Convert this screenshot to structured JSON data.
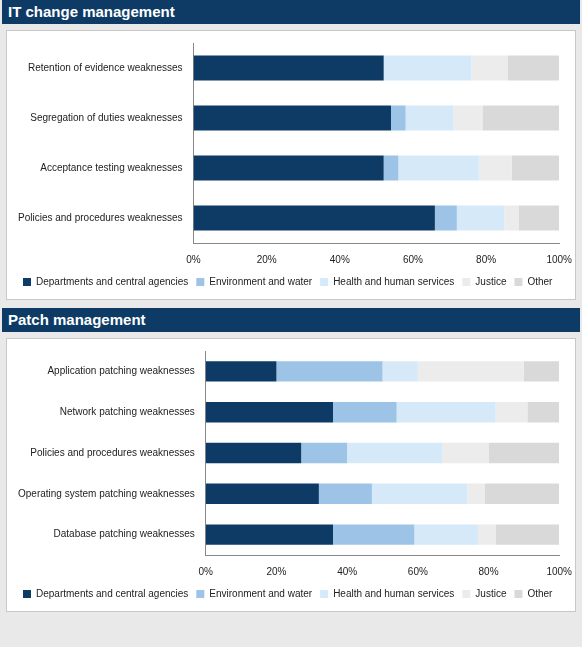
{
  "chart_data": [
    {
      "type": "bar",
      "title": "IT change management",
      "orientation": "horizontal",
      "stacked": true,
      "grid": false,
      "legend": "bottom",
      "categories": [
        "Retention of evidence weaknesses",
        "Segregation of duties weaknesses",
        "Acceptance testing weaknesses",
        "Policies and procedures weaknesses"
      ],
      "series": [
        {
          "name": "Departments and central agencies",
          "color": "#0d3b66",
          "values": [
            52,
            54,
            52,
            66
          ]
        },
        {
          "name": "Environment and water",
          "color": "#9dc3e6",
          "values": [
            0,
            4,
            4,
            6
          ]
        },
        {
          "name": "Health and human services",
          "color": "#d5e9f8",
          "values": [
            24,
            13,
            22,
            13
          ]
        },
        {
          "name": "Justice",
          "color": "#ececec",
          "values": [
            10,
            8,
            9,
            4
          ]
        },
        {
          "name": "Other",
          "color": "#d9d9d9",
          "values": [
            14,
            21,
            13,
            11
          ]
        }
      ],
      "xlim": [
        0,
        100
      ],
      "xticks": [
        {
          "value": 0,
          "label": "0%"
        },
        {
          "value": 20,
          "label": "20%"
        },
        {
          "value": 40,
          "label": "40%"
        },
        {
          "value": 60,
          "label": "60%"
        },
        {
          "value": 80,
          "label": "80%"
        },
        {
          "value": 100,
          "label": "100%"
        }
      ]
    },
    {
      "type": "bar",
      "title": "Patch management",
      "orientation": "horizontal",
      "stacked": true,
      "grid": false,
      "legend": "bottom",
      "categories": [
        "Application patching weaknesses",
        "Network patching weaknesses",
        "Policies and procedures weaknesses",
        "Operating system patching weaknesses",
        "Database patching weaknesses"
      ],
      "series": [
        {
          "name": "Departments and central agencies",
          "color": "#0d3b66",
          "values": [
            20,
            36,
            27,
            32,
            36
          ]
        },
        {
          "name": "Environment and water",
          "color": "#9dc3e6",
          "values": [
            30,
            18,
            13,
            15,
            23
          ]
        },
        {
          "name": "Health and human services",
          "color": "#d5e9f8",
          "values": [
            10,
            28,
            27,
            27,
            18
          ]
        },
        {
          "name": "Justice",
          "color": "#ececec",
          "values": [
            30,
            9,
            13,
            5,
            5
          ]
        },
        {
          "name": "Other",
          "color": "#d9d9d9",
          "values": [
            10,
            9,
            20,
            21,
            18
          ]
        }
      ],
      "xlim": [
        0,
        100
      ],
      "xticks": [
        {
          "value": 0,
          "label": "0%"
        },
        {
          "value": 20,
          "label": "20%"
        },
        {
          "value": 40,
          "label": "40%"
        },
        {
          "value": 60,
          "label": "60%"
        },
        {
          "value": 80,
          "label": "80%"
        },
        {
          "value": 100,
          "label": "100%"
        }
      ]
    }
  ]
}
